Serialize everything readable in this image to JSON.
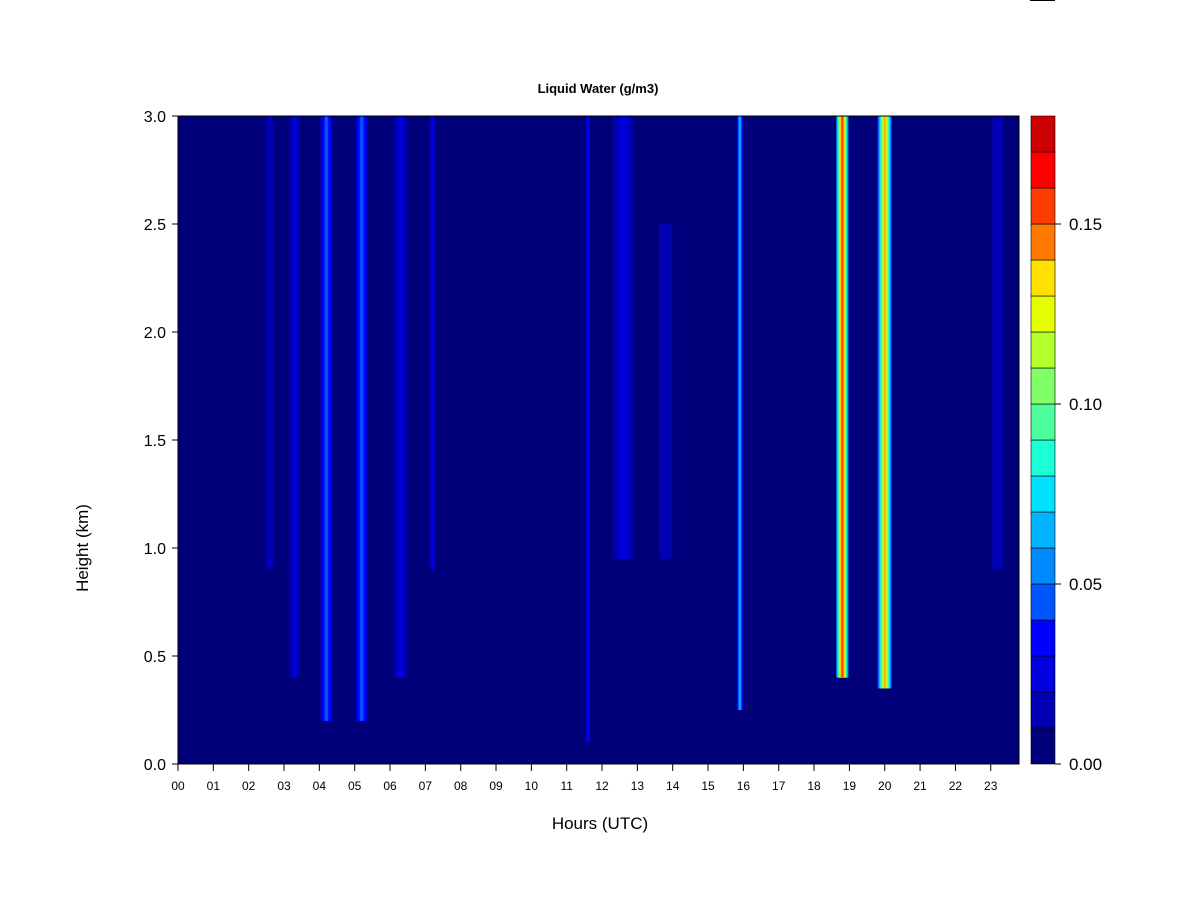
{
  "chart_data": {
    "type": "heatmap",
    "title": "Liquid Water (g/m3)",
    "xlabel": "Hours (UTC)",
    "ylabel": "Height (km)",
    "xlim": [
      0,
      23.8
    ],
    "ylim": [
      0,
      3.0
    ],
    "x_ticks": [
      "00",
      "01",
      "02",
      "03",
      "04",
      "05",
      "06",
      "07",
      "08",
      "09",
      "10",
      "11",
      "12",
      "13",
      "14",
      "15",
      "16",
      "17",
      "18",
      "19",
      "20",
      "21",
      "22",
      "23"
    ],
    "y_ticks": [
      "0.0",
      "0.5",
      "1.0",
      "1.5",
      "2.0",
      "2.5",
      "3.0"
    ],
    "colorbar": {
      "ticks": [
        "0.00",
        "0.05",
        "0.10",
        "0.15"
      ],
      "tick_values": [
        0.0,
        0.05,
        0.1,
        0.15
      ],
      "range": [
        0,
        0.18
      ],
      "levels": 18,
      "colors": [
        "#00007a",
        "#0000b4",
        "#0000e0",
        "#0000ff",
        "#0022ff",
        "#0055ff",
        "#0088ff",
        "#00b4ff",
        "#00e0ff",
        "#1affd6",
        "#4dff9a",
        "#80ff66",
        "#b4ff2e",
        "#e6ff00",
        "#ffe000",
        "#ffae00",
        "#ff7800",
        "#ff3c00",
        "#ff0000",
        "#cc0000",
        "#800000"
      ]
    },
    "background_value": 0.0,
    "features": [
      {
        "hour": 2.6,
        "width": 0.6,
        "peak": 0.012,
        "from_km": 0.9,
        "to_km": 3.0
      },
      {
        "hour": 3.3,
        "width": 0.4,
        "peak": 0.02,
        "from_km": 0.4,
        "to_km": 3.0
      },
      {
        "hour": 4.2,
        "width": 0.35,
        "peak": 0.05,
        "from_km": 0.2,
        "to_km": 3.0
      },
      {
        "hour": 5.2,
        "width": 0.35,
        "peak": 0.05,
        "from_km": 0.2,
        "to_km": 3.0
      },
      {
        "hour": 6.3,
        "width": 0.5,
        "peak": 0.02,
        "from_km": 0.4,
        "to_km": 3.0
      },
      {
        "hour": 7.2,
        "width": 0.2,
        "peak": 0.02,
        "from_km": 0.9,
        "to_km": 3.0
      },
      {
        "hour": 11.6,
        "width": 0.12,
        "peak": 0.03,
        "from_km": 0.1,
        "to_km": 3.0
      },
      {
        "hour": 12.6,
        "width": 0.8,
        "peak": 0.02,
        "from_km": 0.95,
        "to_km": 3.0
      },
      {
        "hour": 13.8,
        "width": 0.6,
        "peak": 0.015,
        "from_km": 0.95,
        "to_km": 2.5
      },
      {
        "hour": 15.9,
        "width": 0.18,
        "peak": 0.07,
        "from_km": 0.25,
        "to_km": 3.0
      },
      {
        "hour": 18.8,
        "width": 0.35,
        "peak": 0.16,
        "from_km": 0.4,
        "to_km": 3.0
      },
      {
        "hour": 20.0,
        "width": 0.4,
        "peak": 0.14,
        "from_km": 0.35,
        "to_km": 3.0
      },
      {
        "hour": 23.2,
        "width": 0.5,
        "peak": 0.015,
        "from_km": 0.9,
        "to_km": 3.0
      }
    ],
    "legend": "right colorbar",
    "grid": false
  }
}
